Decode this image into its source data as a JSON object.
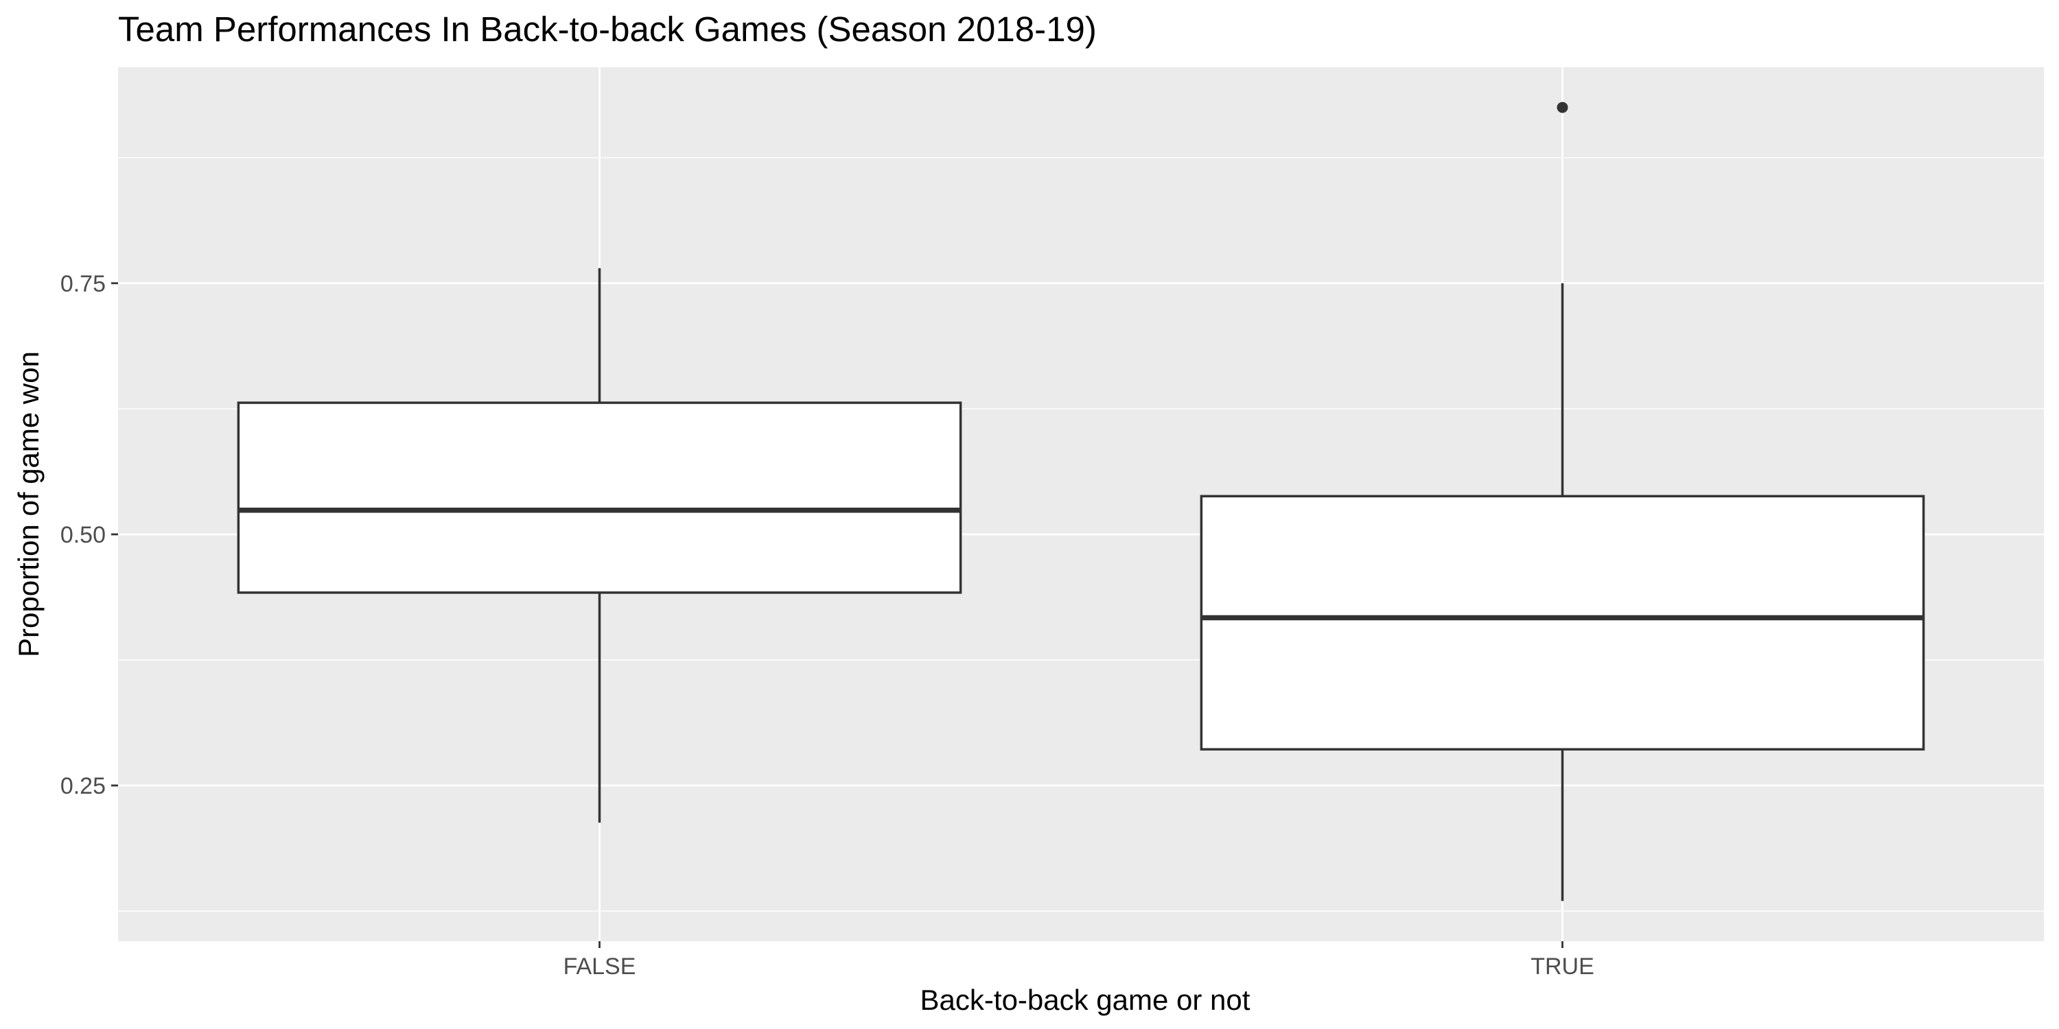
{
  "chart_data": {
    "type": "boxplot",
    "title": "Team Performances In Back-to-back Games (Season 2018-19)",
    "xlabel": "Back-to-back game or not",
    "ylabel": "Proportion of game won",
    "categories": [
      "FALSE",
      "TRUE"
    ],
    "yticks": [
      0.25,
      0.5,
      0.75
    ],
    "ytick_labels": [
      "0.25",
      "0.50",
      "0.75"
    ],
    "ylim": [
      0.095,
      0.965
    ],
    "grid": true,
    "boxes": [
      {
        "category": "FALSE",
        "whisker_low": 0.213,
        "q1": 0.442,
        "median": 0.524,
        "q3": 0.631,
        "whisker_high": 0.765,
        "outliers": []
      },
      {
        "category": "TRUE",
        "whisker_low": 0.135,
        "q1": 0.286,
        "median": 0.417,
        "q3": 0.538,
        "whisker_high": 0.75,
        "outliers": [
          0.925
        ]
      }
    ],
    "colors": {
      "panel_background": "#ebebeb",
      "grid_major": "#ffffff",
      "box_fill": "#ffffff",
      "box_line": "#333333",
      "tick_text": "#4d4d4d"
    }
  }
}
